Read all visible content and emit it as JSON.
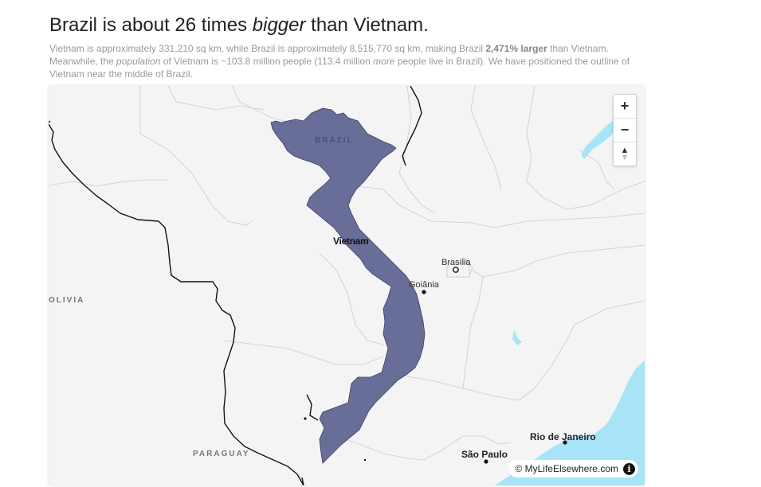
{
  "headline": {
    "part1": "Brazil is about 26 times ",
    "emph": "bigger",
    "part2": " than Vietnam."
  },
  "description": {
    "t1": "Vietnam is approximately 331,210 sq km, while Brazil is approximately 8,515,770 sq km, making Brazil ",
    "bold": "2,471% larger",
    "t2": " than Vietnam. Meanwhile, the ",
    "emph1": "population",
    "t3": " of Vietnam is ~103.8 million people (113.4 million ",
    "emph2": "more",
    "t4": " people live in Brazil). We have positioned the outline of Vietnam near the middle of Brazil."
  },
  "map": {
    "labels": {
      "brazil": "BRAZIL",
      "vietnam": "Vietnam",
      "bolivia": "OLIVIA",
      "paraguay": "PARAGUAY",
      "brasilia": "Brasília",
      "goiania": "Goiânia",
      "sao_paulo": "São Paulo",
      "rio": "Rio de Janeiro"
    },
    "controls": {
      "zoom_in": "+",
      "zoom_out": "−",
      "compass": "▲"
    },
    "attribution": "© MyLifeElsewhere.com",
    "info_glyph": "i",
    "colors": {
      "land": "#f4f4f4",
      "water": "#a8e4f7",
      "overlay": "#5a5f8f",
      "border": "#111111"
    }
  }
}
